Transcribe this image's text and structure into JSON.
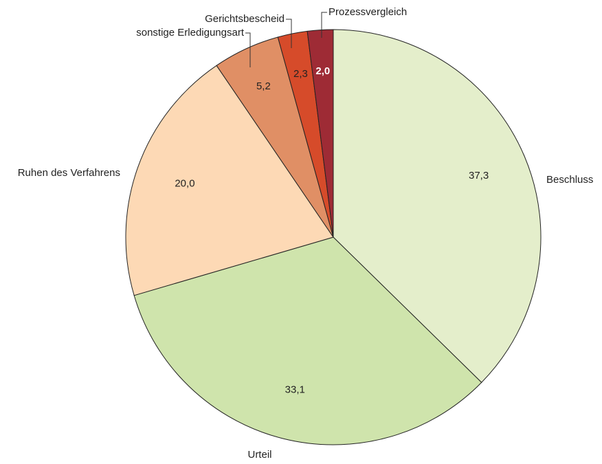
{
  "chart_data": {
    "type": "pie",
    "categories": [
      "Beschluss",
      "Urteil",
      "Ruhen des Verfahrens",
      "sonstige Erledigungsart",
      "Gerichtsbescheid",
      "Prozessvergleich"
    ],
    "values": [
      37.3,
      33.1,
      20.0,
      5.2,
      2.3,
      2.0
    ],
    "value_labels": [
      "37,3",
      "33,1",
      "20,0",
      "5,2",
      "2,3",
      "2,0"
    ],
    "colors": [
      "#e4eecb",
      "#cfe4ac",
      "#fdd9b5",
      "#e08f65",
      "#d64b2a",
      "#9e2b35"
    ]
  }
}
